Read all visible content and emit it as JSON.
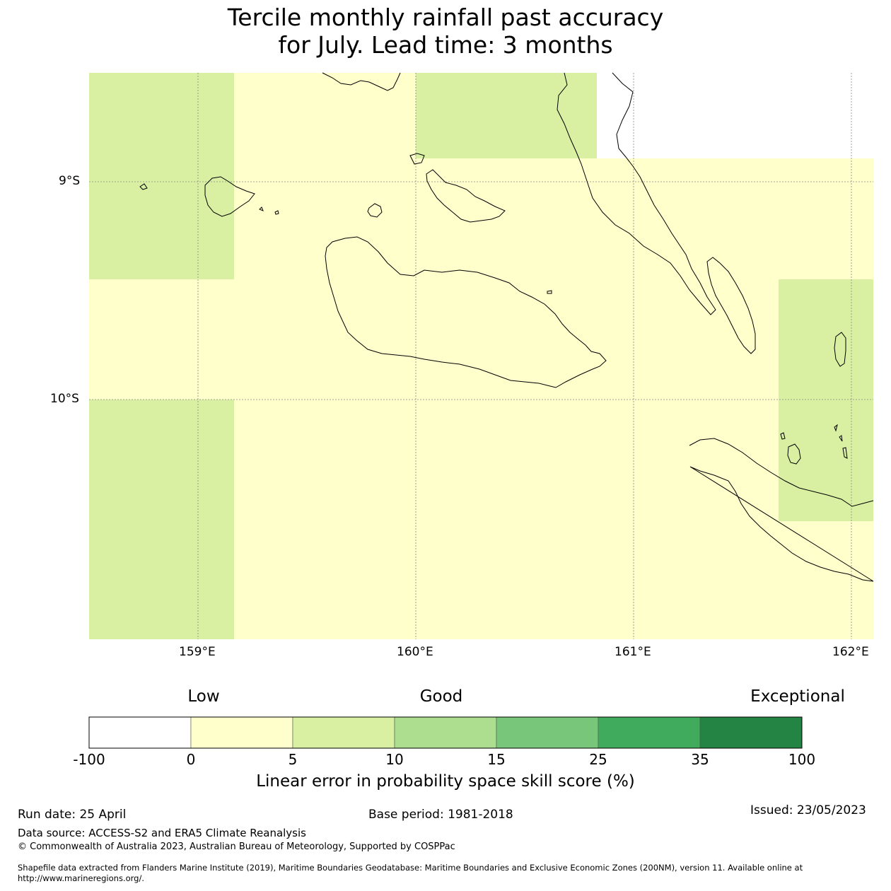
{
  "title_line1": "Tercile monthly rainfall past accuracy",
  "title_line2": "for July. Lead time: 3 months",
  "map": {
    "lat_labels": [
      "9°S",
      "10°S"
    ],
    "lon_labels": [
      "159°E",
      "160°E",
      "161°E",
      "162°E"
    ],
    "extent": {
      "lon_min": 158.5,
      "lon_max": 162.1,
      "lat_min": -11.1,
      "lat_max": -8.5
    },
    "colors": {
      "white": "#ffffff",
      "low_yellow": "#ffffcc",
      "light_green": "#d9f0a3"
    }
  },
  "colorbar": {
    "categories": [
      "Low",
      "Good",
      "Exceptional"
    ],
    "ticks": [
      "-100",
      "0",
      "5",
      "10",
      "15",
      "25",
      "35",
      "100"
    ],
    "colors": [
      "#ffffff",
      "#ffffcc",
      "#d9f0a3",
      "#addd8e",
      "#78c679",
      "#41ab5d",
      "#238443"
    ],
    "label": "Linear error in probability space skill score (%)"
  },
  "footer": {
    "run_date": "Run date: 25 April",
    "base_period": "Base period: 1981-2018",
    "issued": "Issued: 23/05/2023",
    "data_source": "Data source: ACCESS-S2 and ERA5 Climate Reanalysis",
    "copyright": "© Commonwealth of Australia 2023, Australian Bureau of Meteorology, Supported by COSPPac",
    "shapefile_line1": "Shapefile data extracted from Flanders Marine Institute (2019), Maritime Boundaries Geodatabase: Maritime Boundaries and Exclusive Economic Zones (200NM), version 11. Available online at",
    "shapefile_line2": "http://www.marineregions.org/."
  }
}
